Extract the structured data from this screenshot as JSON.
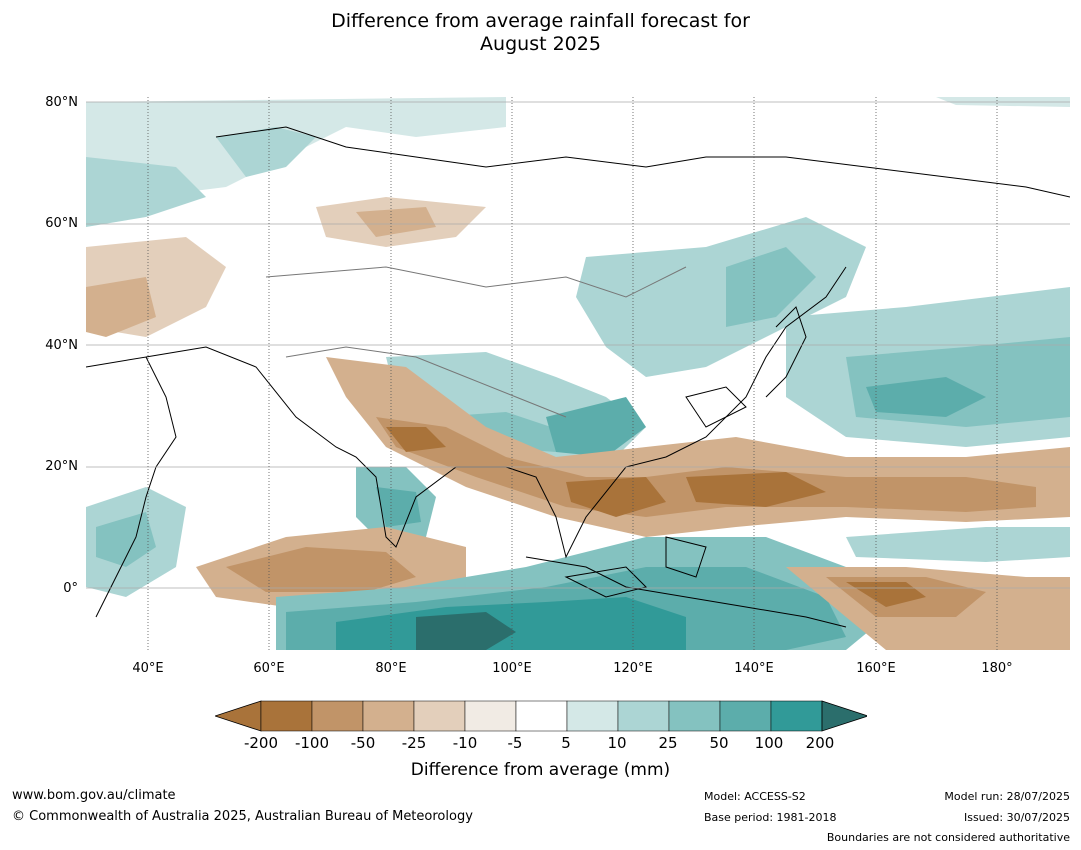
{
  "title_line1": "Difference from average rainfall forecast for",
  "title_line2": "August 2025",
  "map": {
    "lat_labels": [
      "80°N",
      "60°N",
      "40°N",
      "20°N",
      "0°"
    ],
    "lon_labels": [
      "40°E",
      "60°E",
      "80°E",
      "100°E",
      "120°E",
      "140°E",
      "160°E",
      "180°"
    ]
  },
  "colorbar": {
    "title": "Difference from average (mm)",
    "ticks": [
      "-200",
      "-100",
      "-50",
      "-25",
      "-10",
      "-5",
      "5",
      "10",
      "25",
      "50",
      "100",
      "200"
    ],
    "colors": [
      "#a9733a",
      "#a9733a",
      "#c19468",
      "#d3b08e",
      "#e3cfbb",
      "#f1ebe4",
      "#ffffff",
      "#d4e8e7",
      "#acd5d4",
      "#84c2c0",
      "#5cadab",
      "#319a98",
      "#2b6e6c"
    ]
  },
  "footer": {
    "url": "www.bom.gov.au/climate",
    "copyright": "© Commonwealth of Australia 2025, Australian Bureau of Meteorology",
    "model": "Model: ACCESS-S2",
    "base_period": "Base period: 1981-2018",
    "model_run": "Model run: 28/07/2025",
    "issued": "Issued: 30/07/2025",
    "disclaimer": "Boundaries are not considered authoritative"
  }
}
